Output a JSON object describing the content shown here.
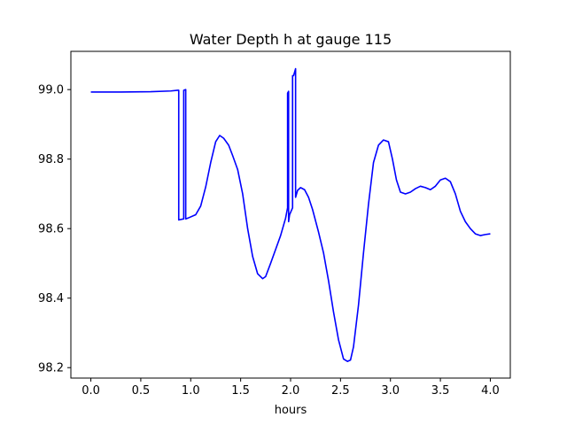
{
  "chart_data": {
    "type": "line",
    "title": "Water Depth h at gauge 115",
    "xlabel": "hours",
    "ylabel": "",
    "xlim": [
      -0.2,
      4.2
    ],
    "ylim": [
      98.17,
      99.11
    ],
    "xticks": [
      0.0,
      0.5,
      1.0,
      1.5,
      2.0,
      2.5,
      3.0,
      3.5,
      4.0
    ],
    "xtick_labels": [
      "0.0",
      "0.5",
      "1.0",
      "1.5",
      "2.0",
      "2.5",
      "3.0",
      "3.5",
      "4.0"
    ],
    "yticks": [
      98.2,
      98.4,
      98.6,
      98.8,
      99.0
    ],
    "ytick_labels": [
      "98.2",
      "98.4",
      "98.6",
      "98.8",
      "99.0"
    ],
    "grid": false,
    "series": [
      {
        "color": "#0000ff",
        "x": [
          0.0,
          0.3,
          0.6,
          0.8,
          0.87,
          0.88,
          0.88,
          0.93,
          0.93,
          0.95,
          0.95,
          0.97,
          0.97,
          1.05,
          1.1,
          1.15,
          1.2,
          1.25,
          1.29,
          1.33,
          1.38,
          1.42,
          1.47,
          1.52,
          1.57,
          1.62,
          1.67,
          1.72,
          1.75,
          1.8,
          1.85,
          1.9,
          1.95,
          1.97,
          1.97,
          1.98,
          1.98,
          1.99,
          2.02,
          2.02,
          2.03,
          2.05,
          2.05,
          2.07,
          2.1,
          2.14,
          2.18,
          2.22,
          2.28,
          2.33,
          2.38,
          2.43,
          2.48,
          2.53,
          2.57,
          2.6,
          2.63,
          2.68,
          2.73,
          2.78,
          2.83,
          2.88,
          2.93,
          2.98,
          3.02,
          3.06,
          3.1,
          3.15,
          3.2,
          3.25,
          3.3,
          3.35,
          3.4,
          3.45,
          3.5,
          3.55,
          3.6,
          3.65,
          3.7,
          3.75,
          3.8,
          3.85,
          3.9,
          3.95,
          4.0
        ],
        "y": [
          98.993,
          98.993,
          98.994,
          98.996,
          98.998,
          98.998,
          98.625,
          98.628,
          98.998,
          99.0,
          98.628,
          98.63,
          98.63,
          98.64,
          98.665,
          98.72,
          98.79,
          98.85,
          98.868,
          98.86,
          98.84,
          98.81,
          98.77,
          98.7,
          98.6,
          98.52,
          98.47,
          98.456,
          98.462,
          98.5,
          98.54,
          98.58,
          98.63,
          98.66,
          98.99,
          98.995,
          98.62,
          98.64,
          98.66,
          99.04,
          99.04,
          99.06,
          98.69,
          98.71,
          98.718,
          98.712,
          98.69,
          98.655,
          98.59,
          98.53,
          98.45,
          98.36,
          98.28,
          98.225,
          98.218,
          98.222,
          98.26,
          98.38,
          98.53,
          98.67,
          98.79,
          98.84,
          98.855,
          98.85,
          98.8,
          98.74,
          98.705,
          98.7,
          98.705,
          98.715,
          98.722,
          98.718,
          98.712,
          98.722,
          98.74,
          98.745,
          98.735,
          98.7,
          98.65,
          98.62,
          98.6,
          98.585,
          98.58,
          98.583,
          98.585
        ]
      }
    ]
  }
}
